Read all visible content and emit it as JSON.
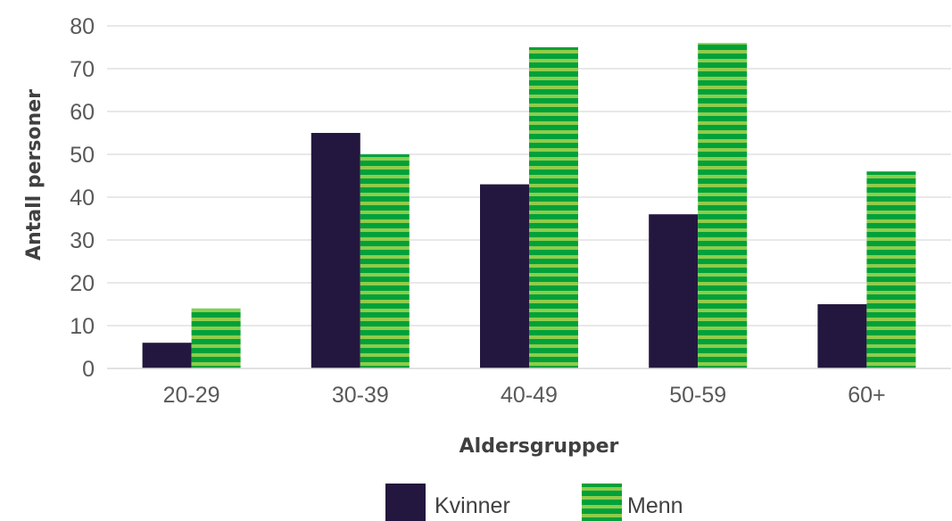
{
  "chart_data": {
    "type": "bar",
    "title": "",
    "xlabel": "Aldersgrupper",
    "ylabel": "Antall personer",
    "categories": [
      "20-29",
      "30-39",
      "40-49",
      "50-59",
      "60+"
    ],
    "ylim": [
      0,
      80
    ],
    "yticks": [
      "0",
      "10",
      "20",
      "30",
      "40",
      "50",
      "60",
      "70",
      "80"
    ],
    "grid": true,
    "legend_position": "bottom",
    "series": [
      {
        "name": "Kvinner",
        "values": [
          6,
          55,
          43,
          36,
          15
        ],
        "color": "#24173f",
        "pattern": "solid"
      },
      {
        "name": "Menn",
        "values": [
          14,
          50,
          75,
          76,
          46
        ],
        "color": "#00a13a",
        "stripe_color": "#8fcc4b",
        "pattern": "horizontal-stripes"
      }
    ]
  }
}
